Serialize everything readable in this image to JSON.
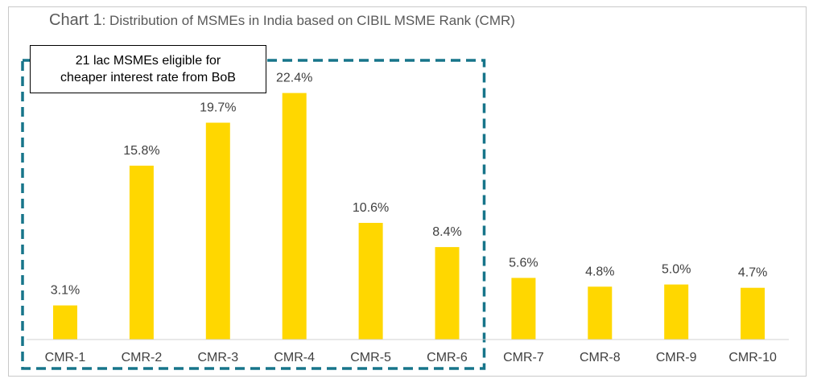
{
  "chart_data": {
    "type": "bar",
    "title_lead": "Chart 1",
    "title_rest": ": Distribution of MSMEs in India based on CIBIL MSME Rank (CMR)",
    "categories": [
      "CMR-1",
      "CMR-2",
      "CMR-3",
      "CMR-4",
      "CMR-5",
      "CMR-6",
      "CMR-7",
      "CMR-8",
      "CMR-9",
      "CMR-10"
    ],
    "values": [
      3.1,
      15.8,
      19.7,
      22.4,
      10.6,
      8.4,
      5.6,
      4.8,
      5.0,
      4.7
    ],
    "value_labels": [
      "3.1%",
      "15.8%",
      "19.7%",
      "22.4%",
      "10.6%",
      "8.4%",
      "5.6%",
      "4.8%",
      "5.0%",
      "4.7%"
    ],
    "ylim": [
      0,
      25
    ],
    "grid": false,
    "bar_color": "#FFD700",
    "highlight": {
      "categories": [
        "CMR-1",
        "CMR-2",
        "CMR-3",
        "CMR-4",
        "CMR-5",
        "CMR-6"
      ],
      "border_color": "#17758A",
      "annotation": "21 lac MSMEs eligible for\ncheaper interest rate from BoB"
    }
  }
}
